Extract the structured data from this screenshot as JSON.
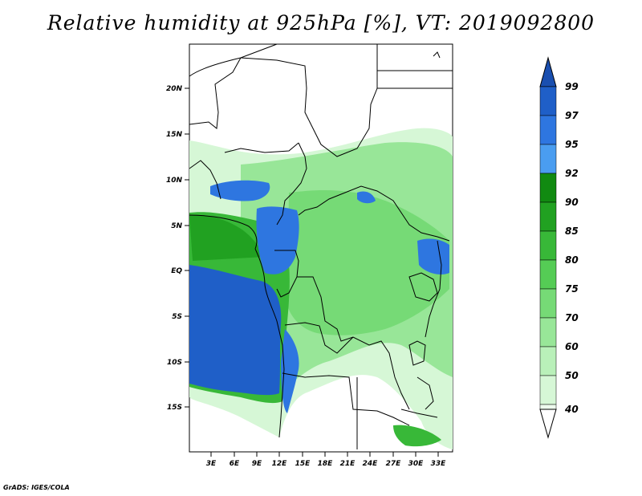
{
  "title": "Relative humidity at 925hPa [%], VT: 2019092800",
  "credit": "GrADS: IGES/COLA",
  "lat_ticks": [
    "20N",
    "15N",
    "10N",
    "5N",
    "EQ",
    "5S",
    "10S",
    "15S"
  ],
  "lon_ticks": [
    "3E",
    "6E",
    "9E",
    "12E",
    "15E",
    "18E",
    "21E",
    "24E",
    "27E",
    "30E",
    "33E"
  ],
  "colorbar": {
    "labels": [
      "99",
      "97",
      "95",
      "92",
      "90",
      "85",
      "80",
      "75",
      "70",
      "60",
      "50",
      "40"
    ],
    "colors": [
      "#1f5fc8",
      "#2e76e0",
      "#4a9df0",
      "#118a11",
      "#21a121",
      "#38b838",
      "#55cc55",
      "#76da76",
      "#98e698",
      "#b9f0b9",
      "#d6f7d6",
      "#eefcee"
    ],
    "top_arrow_color": "#1a4fb0",
    "bottom_arrow_color": "#ffffff"
  }
}
